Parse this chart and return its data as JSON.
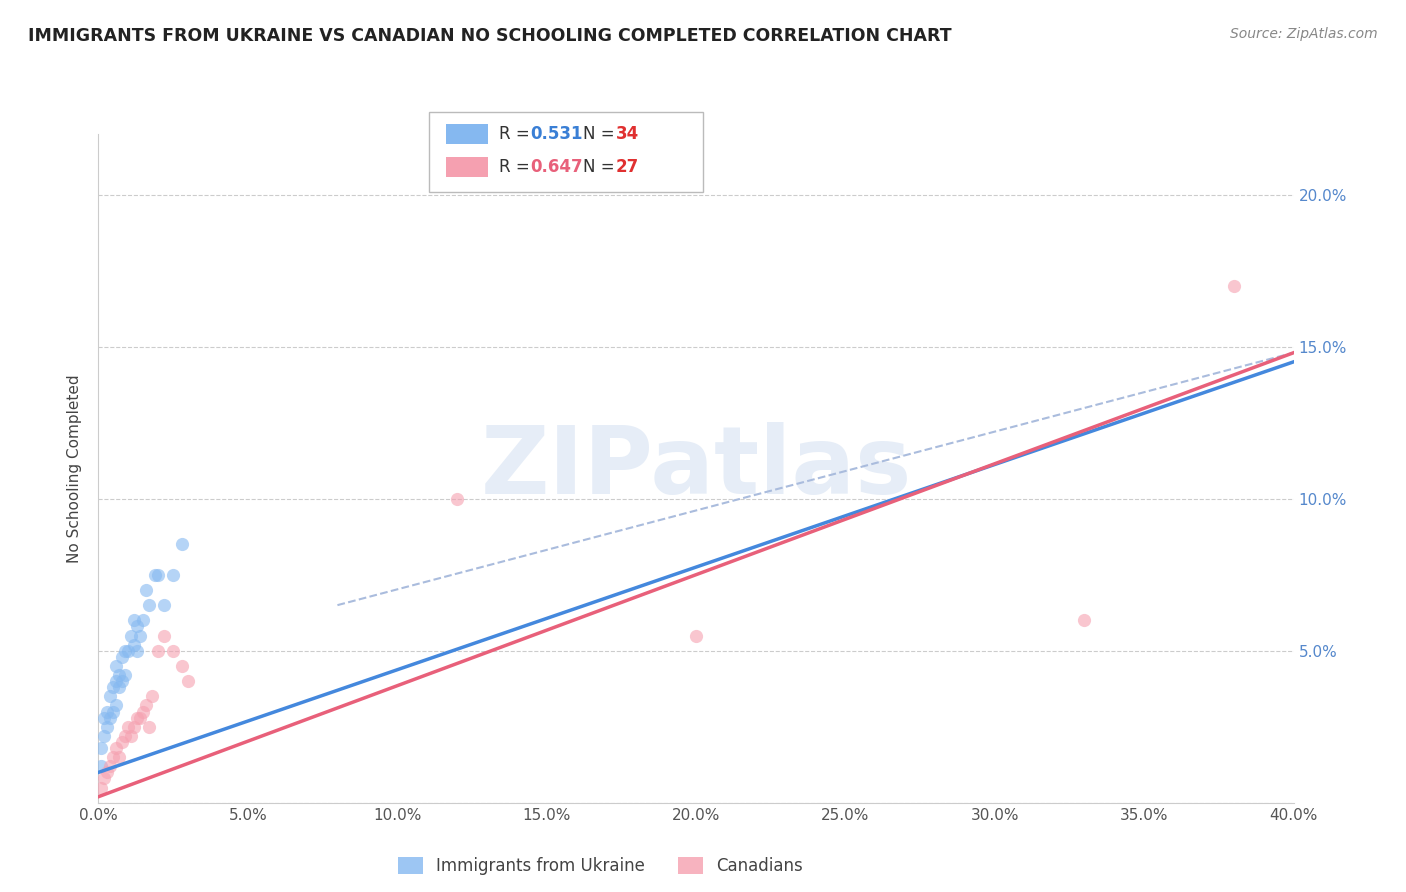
{
  "title": "IMMIGRANTS FROM UKRAINE VS CANADIAN NO SCHOOLING COMPLETED CORRELATION CHART",
  "source": "Source: ZipAtlas.com",
  "ylabel": "No Schooling Completed",
  "xlim": [
    0.0,
    0.4
  ],
  "ylim": [
    0.0,
    0.22
  ],
  "xticks": [
    0.0,
    0.05,
    0.1,
    0.15,
    0.2,
    0.25,
    0.3,
    0.35,
    0.4
  ],
  "xtick_labels": [
    "0.0%",
    "5.0%",
    "10.0%",
    "15.0%",
    "20.0%",
    "25.0%",
    "30.0%",
    "35.0%",
    "40.0%"
  ],
  "yticks_right": [
    0.05,
    0.1,
    0.15,
    0.2
  ],
  "ytick_labels_right": [
    "5.0%",
    "10.0%",
    "15.0%",
    "20.0%"
  ],
  "blue_color": "#85b8f0",
  "pink_color": "#f5a0b0",
  "blue_line_color": "#4488dd",
  "pink_line_color": "#e8607a",
  "dashed_line_color": "#aabcdd",
  "scatter_alpha": 0.6,
  "scatter_size": 90,
  "ukraine_x": [
    0.001,
    0.001,
    0.002,
    0.002,
    0.003,
    0.003,
    0.004,
    0.004,
    0.005,
    0.005,
    0.006,
    0.006,
    0.006,
    0.007,
    0.007,
    0.008,
    0.008,
    0.009,
    0.009,
    0.01,
    0.011,
    0.012,
    0.012,
    0.013,
    0.013,
    0.014,
    0.015,
    0.016,
    0.017,
    0.019,
    0.02,
    0.022,
    0.025,
    0.028
  ],
  "ukraine_y": [
    0.012,
    0.018,
    0.022,
    0.028,
    0.025,
    0.03,
    0.028,
    0.035,
    0.03,
    0.038,
    0.032,
    0.04,
    0.045,
    0.038,
    0.042,
    0.04,
    0.048,
    0.042,
    0.05,
    0.05,
    0.055,
    0.052,
    0.06,
    0.05,
    0.058,
    0.055,
    0.06,
    0.07,
    0.065,
    0.075,
    0.075,
    0.065,
    0.075,
    0.085
  ],
  "canada_x": [
    0.001,
    0.002,
    0.003,
    0.004,
    0.005,
    0.006,
    0.007,
    0.008,
    0.009,
    0.01,
    0.011,
    0.012,
    0.013,
    0.014,
    0.015,
    0.016,
    0.017,
    0.018,
    0.02,
    0.022,
    0.025,
    0.028,
    0.03,
    0.12,
    0.2,
    0.33,
    0.38
  ],
  "canada_y": [
    0.005,
    0.008,
    0.01,
    0.012,
    0.015,
    0.018,
    0.015,
    0.02,
    0.022,
    0.025,
    0.022,
    0.025,
    0.028,
    0.028,
    0.03,
    0.032,
    0.025,
    0.035,
    0.05,
    0.055,
    0.05,
    0.045,
    0.04,
    0.1,
    0.055,
    0.06,
    0.17
  ],
  "ukraine_line_x": [
    0.0,
    0.4
  ],
  "ukraine_line_y": [
    0.01,
    0.145
  ],
  "canada_line_x": [
    0.0,
    0.4
  ],
  "canada_line_y": [
    0.002,
    0.148
  ],
  "dashed_line_x": [
    0.08,
    0.4
  ],
  "dashed_line_y": [
    0.065,
    0.148
  ],
  "legend_color1": "#85b8f0",
  "legend_color2": "#f5a0b0",
  "watermark": "ZIPatlas"
}
